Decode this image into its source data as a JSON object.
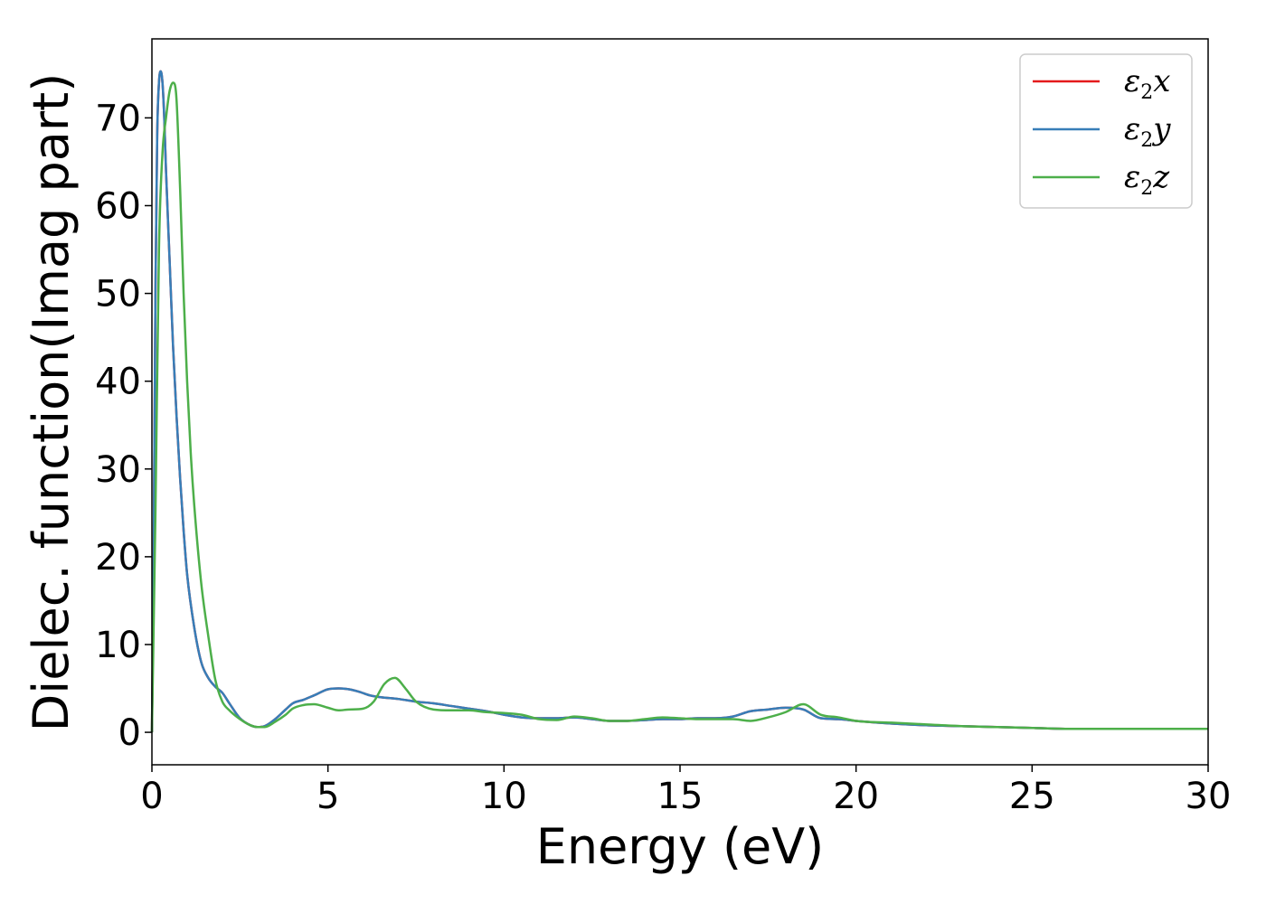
{
  "chart_data": {
    "type": "line",
    "title": "",
    "xlabel": "Energy (eV)",
    "ylabel": "Dielec. function(Imag part)",
    "xlim": [
      0,
      30
    ],
    "ylim": [
      -3.7,
      79
    ],
    "xticks": [
      "0",
      "5",
      "10",
      "15",
      "20",
      "25",
      "30"
    ],
    "yticks": [
      "0",
      "10",
      "20",
      "30",
      "40",
      "50",
      "60",
      "70"
    ],
    "grid": false,
    "legend_position": "top-right",
    "series": [
      {
        "name": "ε2x",
        "legend_base": "ε",
        "legend_sub": "2",
        "legend_tail": "x",
        "color": "#e41a1c",
        "x": [
          0,
          0.05,
          0.1,
          0.15,
          0.2,
          0.25,
          0.3,
          0.35,
          0.4,
          0.5,
          0.6,
          0.7,
          0.8,
          0.9,
          1.0,
          1.2,
          1.4,
          1.6,
          1.8,
          2.0,
          2.2,
          2.5,
          2.8,
          3.0,
          3.2,
          3.5,
          3.8,
          4.0,
          4.3,
          4.6,
          5.0,
          5.3,
          5.6,
          5.9,
          6.2,
          6.5,
          7.0,
          7.5,
          8.0,
          8.5,
          9.0,
          9.5,
          10.0,
          10.5,
          11.0,
          11.5,
          12.0,
          12.5,
          13.0,
          13.5,
          14.0,
          14.5,
          15.0,
          15.5,
          16.0,
          16.5,
          17.0,
          17.5,
          18.0,
          18.5,
          19.0,
          19.5,
          20.0,
          21.0,
          22.0,
          23.0,
          24.0,
          25.0,
          26.0,
          27.0,
          28.0,
          29.0,
          30.0
        ],
        "y": [
          0,
          20,
          50,
          68,
          74,
          75.3,
          74,
          70,
          64,
          54,
          44,
          36,
          29,
          23,
          18,
          12,
          8,
          6.2,
          5.2,
          4.5,
          3.3,
          1.6,
          0.8,
          0.6,
          0.7,
          1.5,
          2.6,
          3.3,
          3.7,
          4.2,
          4.9,
          5.0,
          4.9,
          4.6,
          4.2,
          4.0,
          3.8,
          3.5,
          3.3,
          3.0,
          2.7,
          2.4,
          2.0,
          1.7,
          1.6,
          1.6,
          1.7,
          1.5,
          1.3,
          1.3,
          1.4,
          1.5,
          1.5,
          1.6,
          1.6,
          1.8,
          2.4,
          2.6,
          2.8,
          2.6,
          1.6,
          1.5,
          1.3,
          1.0,
          0.8,
          0.7,
          0.6,
          0.5,
          0.4,
          0.4,
          0.4,
          0.4,
          0.4
        ]
      },
      {
        "name": "ε2y",
        "legend_base": "ε",
        "legend_sub": "2",
        "legend_tail": "y",
        "color": "#377eb8",
        "x": [
          0,
          0.05,
          0.1,
          0.15,
          0.2,
          0.25,
          0.3,
          0.35,
          0.4,
          0.5,
          0.6,
          0.7,
          0.8,
          0.9,
          1.0,
          1.2,
          1.4,
          1.6,
          1.8,
          2.0,
          2.2,
          2.5,
          2.8,
          3.0,
          3.2,
          3.5,
          3.8,
          4.0,
          4.3,
          4.6,
          5.0,
          5.3,
          5.6,
          5.9,
          6.2,
          6.5,
          7.0,
          7.5,
          8.0,
          8.5,
          9.0,
          9.5,
          10.0,
          10.5,
          11.0,
          11.5,
          12.0,
          12.5,
          13.0,
          13.5,
          14.0,
          14.5,
          15.0,
          15.5,
          16.0,
          16.5,
          17.0,
          17.5,
          18.0,
          18.5,
          19.0,
          19.5,
          20.0,
          21.0,
          22.0,
          23.0,
          24.0,
          25.0,
          26.0,
          27.0,
          28.0,
          29.0,
          30.0
        ],
        "y": [
          0,
          20,
          50,
          68,
          74,
          75.3,
          74,
          70,
          64,
          54,
          44,
          36,
          29,
          23,
          18,
          12,
          8,
          6.2,
          5.2,
          4.5,
          3.3,
          1.6,
          0.8,
          0.6,
          0.7,
          1.5,
          2.6,
          3.3,
          3.7,
          4.2,
          4.9,
          5.0,
          4.9,
          4.6,
          4.2,
          4.0,
          3.8,
          3.5,
          3.3,
          3.0,
          2.7,
          2.4,
          2.0,
          1.7,
          1.6,
          1.6,
          1.7,
          1.5,
          1.3,
          1.3,
          1.4,
          1.5,
          1.5,
          1.6,
          1.6,
          1.8,
          2.4,
          2.6,
          2.8,
          2.6,
          1.6,
          1.5,
          1.3,
          1.0,
          0.8,
          0.7,
          0.6,
          0.5,
          0.4,
          0.4,
          0.4,
          0.4,
          0.4
        ]
      },
      {
        "name": "ε2z",
        "legend_base": "ε",
        "legend_sub": "2",
        "legend_tail": "z",
        "color": "#4daf4a",
        "x": [
          0,
          0.1,
          0.2,
          0.3,
          0.4,
          0.5,
          0.6,
          0.65,
          0.7,
          0.8,
          0.9,
          1.0,
          1.1,
          1.2,
          1.4,
          1.6,
          1.8,
          2.0,
          2.2,
          2.5,
          2.8,
          3.0,
          3.2,
          3.5,
          3.8,
          4.0,
          4.3,
          4.6,
          5.0,
          5.3,
          5.6,
          6.0,
          6.3,
          6.6,
          6.9,
          7.2,
          7.5,
          8.0,
          8.5,
          9.0,
          9.5,
          10.0,
          10.5,
          11.0,
          11.5,
          12.0,
          12.5,
          13.0,
          13.5,
          14.0,
          14.5,
          15.0,
          15.5,
          16.0,
          16.5,
          17.0,
          17.5,
          18.0,
          18.5,
          19.0,
          19.5,
          20.0,
          21.0,
          22.0,
          23.0,
          24.0,
          25.0,
          26.0,
          27.0,
          28.0,
          29.0,
          30.0
        ],
        "y": [
          0,
          25,
          55,
          66,
          70,
          73,
          74,
          73.8,
          72,
          62,
          50,
          40,
          32,
          26,
          17,
          11,
          6,
          3.5,
          2.5,
          1.5,
          0.8,
          0.6,
          0.6,
          1.2,
          2.0,
          2.7,
          3.1,
          3.2,
          2.8,
          2.5,
          2.6,
          2.7,
          3.5,
          5.5,
          6.2,
          5.0,
          3.5,
          2.6,
          2.5,
          2.5,
          2.3,
          2.2,
          2.0,
          1.5,
          1.4,
          1.8,
          1.6,
          1.3,
          1.3,
          1.5,
          1.7,
          1.6,
          1.5,
          1.5,
          1.5,
          1.3,
          1.7,
          2.3,
          3.2,
          2.0,
          1.7,
          1.3,
          1.1,
          0.9,
          0.7,
          0.6,
          0.5,
          0.4,
          0.4,
          0.4,
          0.4,
          0.4
        ]
      }
    ]
  }
}
